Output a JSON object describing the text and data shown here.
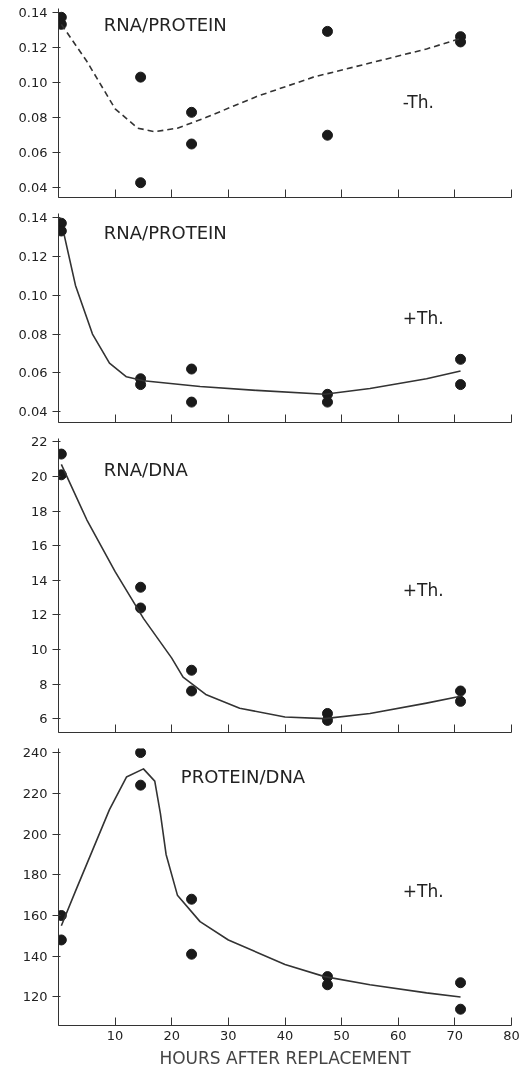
{
  "chart_data": [
    {
      "type": "scatter",
      "title": "RNA/PROTEIN",
      "annotations": [
        "-Th."
      ],
      "xlim": [
        0,
        80
      ],
      "xticks": [
        {
          "value": 0,
          "label": null
        },
        {
          "value": 10,
          "label": null
        },
        {
          "value": 20,
          "label": null
        },
        {
          "value": 30,
          "label": null
        },
        {
          "value": 40,
          "label": null
        },
        {
          "value": 50,
          "label": null
        },
        {
          "value": 60,
          "label": null
        },
        {
          "value": 70,
          "label": null
        },
        {
          "value": 80,
          "label": null
        }
      ],
      "ylim": [
        0.0346,
        0.142
      ],
      "yticks": [
        0.04,
        0.06,
        0.08,
        {
          "value": 0.1,
          "label": "0.10"
        },
        0.12,
        0.14
      ],
      "tick_labels": "y",
      "grid": false,
      "series": [
        {
          "marker": "circle",
          "color": "#1a1a1a",
          "x": [
            0.5,
            0.5,
            14.5,
            14.5,
            23.5,
            23.5,
            47.5,
            47.5,
            71,
            71
          ],
          "values": [
            0.137,
            0.133,
            0.103,
            0.043,
            0.083,
            0.065,
            0.129,
            0.07,
            0.126,
            0.123
          ]
        },
        {
          "type": "line",
          "color": "#333333",
          "line_style": "dashed",
          "x": [
            0.5,
            5,
            10,
            14,
            17,
            21,
            26,
            35,
            45,
            55,
            65,
            71
          ],
          "values": [
            0.133,
            0.112,
            0.085,
            0.074,
            0.072,
            0.074,
            0.08,
            0.092,
            0.103,
            0.111,
            0.119,
            0.125
          ]
        }
      ]
    },
    {
      "type": "scatter",
      "title": "RNA/PROTEIN",
      "annotations": [
        "+Th."
      ],
      "xlim": [
        0,
        80
      ],
      "xticks": [
        {
          "value": 0,
          "label": null
        },
        {
          "value": 10,
          "label": null
        },
        {
          "value": 20,
          "label": null
        },
        {
          "value": 30,
          "label": null
        },
        {
          "value": 40,
          "label": null
        },
        {
          "value": 50,
          "label": null
        },
        {
          "value": 60,
          "label": null
        },
        {
          "value": 70,
          "label": null
        },
        {
          "value": 80,
          "label": null
        }
      ],
      "ylim": [
        0.0345,
        0.142
      ],
      "yticks": [
        0.04,
        0.06,
        0.08,
        {
          "value": 0.1,
          "label": "0.10"
        },
        0.12,
        0.14
      ],
      "tick_labels": "y",
      "grid": false,
      "series": [
        {
          "marker": "circle",
          "color": "#1a1a1a",
          "x": [
            0.5,
            0.5,
            14.5,
            14.5,
            23.5,
            23.5,
            47.5,
            47.5,
            71,
            71
          ],
          "values": [
            0.137,
            0.133,
            0.057,
            0.054,
            0.062,
            0.045,
            0.049,
            0.045,
            0.067,
            0.054
          ]
        },
        {
          "type": "line",
          "color": "#333333",
          "line_style": "solid",
          "x": [
            1,
            3,
            6,
            9,
            12,
            15,
            25,
            35,
            47,
            55,
            65,
            71
          ],
          "values": [
            0.131,
            0.105,
            0.08,
            0.065,
            0.058,
            0.056,
            0.053,
            0.051,
            0.049,
            0.052,
            0.057,
            0.061
          ]
        }
      ]
    },
    {
      "type": "scatter",
      "title": "RNA/DNA",
      "annotations": [
        "+Th."
      ],
      "xlim": [
        0,
        80
      ],
      "xticks": [
        {
          "value": 0,
          "label": null
        },
        {
          "value": 10,
          "label": null
        },
        {
          "value": 20,
          "label": null
        },
        {
          "value": 30,
          "label": null
        },
        {
          "value": 40,
          "label": null
        },
        {
          "value": 50,
          "label": null
        },
        {
          "value": 60,
          "label": null
        },
        {
          "value": 70,
          "label": null
        },
        {
          "value": 80,
          "label": null
        }
      ],
      "ylim": [
        5.2,
        22.2
      ],
      "yticks": [
        6,
        8,
        10,
        12,
        14,
        16,
        18,
        20,
        22
      ],
      "tick_labels": "y",
      "grid": false,
      "series": [
        {
          "marker": "circle",
          "color": "#1a1a1a",
          "x": [
            0.5,
            0.5,
            14.5,
            14.5,
            23.5,
            23.5,
            47.5,
            47.5,
            71,
            71
          ],
          "values": [
            21.3,
            20.1,
            13.6,
            12.4,
            8.8,
            7.6,
            6.3,
            5.9,
            7.6,
            7.0
          ]
        },
        {
          "type": "line",
          "color": "#333333",
          "line_style": "solid",
          "x": [
            0.5,
            5,
            10,
            15,
            20,
            22,
            26,
            32,
            40,
            47,
            55,
            65,
            71
          ],
          "values": [
            20.7,
            17.5,
            14.5,
            11.8,
            9.5,
            8.4,
            7.4,
            6.6,
            6.1,
            6.0,
            6.3,
            6.9,
            7.3
          ]
        }
      ]
    },
    {
      "type": "scatter",
      "title": "PROTEIN/DNA",
      "annotations": [
        "+Th."
      ],
      "xlabel": "HOURS AFTER REPLACEMENT",
      "xlim": [
        0,
        80
      ],
      "xticks": [
        {
          "value": 0,
          "label": null
        },
        10,
        20,
        30,
        40,
        50,
        60,
        70,
        80
      ],
      "ylim": [
        106,
        242
      ],
      "yticks": [
        120,
        140,
        160,
        180,
        200,
        220,
        240
      ],
      "grid": false,
      "series": [
        {
          "marker": "circle",
          "color": "#1a1a1a",
          "x": [
            0.5,
            0.5,
            14.5,
            14.5,
            23.5,
            23.5,
            47.5,
            47.5,
            71,
            71
          ],
          "values": [
            160,
            148,
            240,
            224,
            168,
            141,
            130,
            126,
            127,
            114
          ]
        },
        {
          "type": "line",
          "color": "#333333",
          "line_style": "solid",
          "x": [
            0.5,
            3,
            6,
            9,
            12,
            15,
            17,
            18,
            19,
            21,
            25,
            30,
            40,
            47,
            55,
            65,
            71
          ],
          "values": [
            155,
            172,
            192,
            212,
            228,
            232,
            226,
            210,
            190,
            170,
            157,
            148,
            136,
            130,
            126,
            122,
            120
          ]
        }
      ]
    }
  ]
}
